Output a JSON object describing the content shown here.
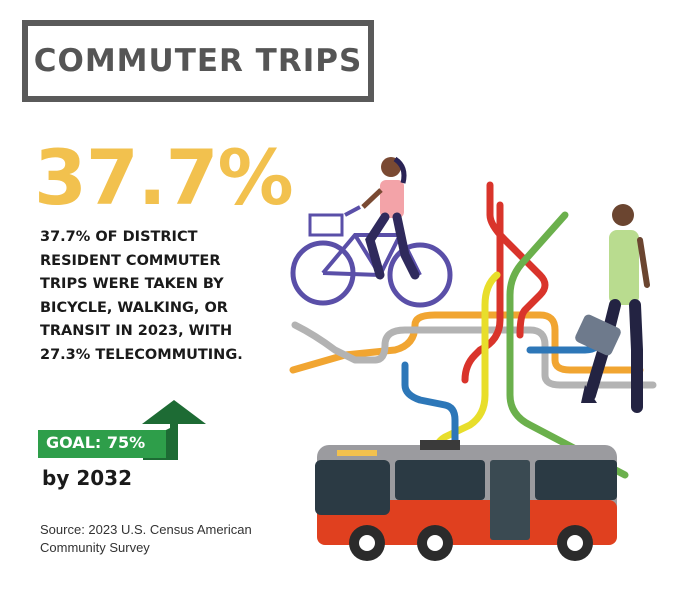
{
  "header": {
    "title": "COMMUTER TRIPS"
  },
  "stat": {
    "value": "37.7%",
    "description": "37.7% OF DISTRICT\nRESIDENT COMMUTER\nTRIPS WERE TAKEN BY\nBICYCLE, WALKING, OR\nTRANSIT IN 2023, WITH\n27.3% TELECOMMUTING."
  },
  "goal": {
    "label": "GOAL: 75%",
    "target_year": "by 2032",
    "progress_percent": 37.7
  },
  "source": {
    "text": "Source: 2023 U.S. Census American Community Survey"
  },
  "colors": {
    "accent_yellow": "#f2c14e",
    "goal_green": "#2e9e4a",
    "arrow_dark_green": "#1d6b34",
    "frame_gray": "#5a5a5a"
  },
  "icons": [
    "bicycle-rider-illustration",
    "pedestrian-illustration",
    "transit-map-lines",
    "bus-illustration",
    "up-arrow-icon"
  ]
}
